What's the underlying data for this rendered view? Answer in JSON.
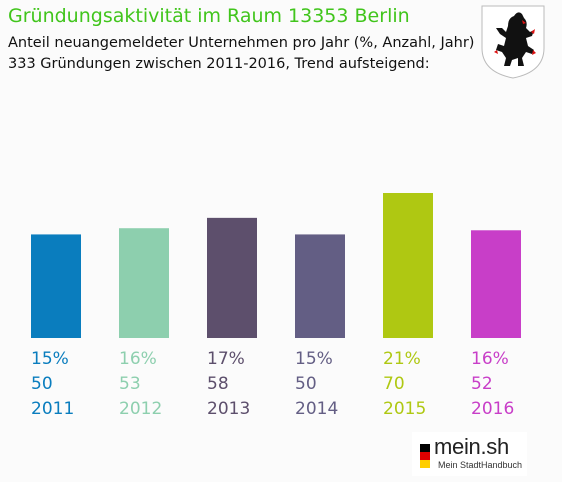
{
  "header": {
    "title": "Gründungsaktivität im Raum 13353 Berlin",
    "subtitle_line1": "Anteil neuangemeldeter Unternehmen pro Jahr (%, Anzahl, Jahr)",
    "subtitle_line2": "333 Gründungen zwischen 2011-2016, Trend aufsteigend:"
  },
  "crest": {
    "icon": "berlin-bear-crest-icon"
  },
  "brand": {
    "name": "mein.sh",
    "tagline": "Mein StadtHandbuch"
  },
  "chart_data": {
    "type": "bar",
    "categories": [
      "2011",
      "2012",
      "2013",
      "2014",
      "2015",
      "2016"
    ],
    "values": [
      50,
      53,
      58,
      50,
      70,
      52
    ],
    "percent_labels": [
      "15%",
      "16%",
      "17%",
      "15%",
      "21%",
      "16%"
    ],
    "colors": [
      "#0a7dbe",
      "#8dcfae",
      "#5d4f6c",
      "#635e84",
      "#afc812",
      "#c83ec8"
    ],
    "ylim": [
      0,
      70
    ],
    "grid": false,
    "legend": "none"
  }
}
